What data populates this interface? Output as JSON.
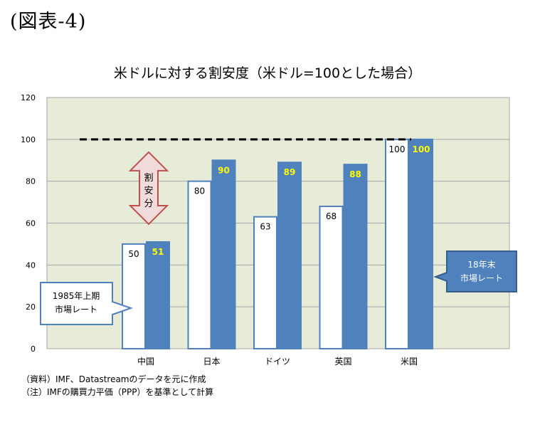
{
  "figure_label": "(図表-4)",
  "chart_data": {
    "type": "bar",
    "title": "米ドルに対する割安度（米ドル=100とした場合）",
    "categories": [
      "中国",
      "日本",
      "ドイツ",
      "英国",
      "米国"
    ],
    "series": [
      {
        "values": [
          50,
          80,
          63,
          68,
          100
        ],
        "fill": "#ffffff",
        "stroke": "#4f81bd",
        "label_color": "#000000"
      },
      {
        "values": [
          51,
          90,
          89,
          88,
          100
        ],
        "fill": "#4f81bd",
        "stroke": "#4f81bd",
        "label_color": "#ffff00"
      }
    ],
    "ylim": [
      0,
      120
    ],
    "yticks": [
      "0",
      "20",
      "40",
      "60",
      "80",
      "100",
      "120"
    ],
    "reference_line": 100,
    "grid": true,
    "plot_background": "#e6ecd8",
    "annotations": {
      "arrow_text": [
        "割",
        "安",
        "分"
      ],
      "callout_left": [
        "1985年上期",
        "市場レート"
      ],
      "callout_right": [
        "18年末",
        "市場レート"
      ]
    }
  },
  "notes": [
    "（資料）IMF、Datastreamのデータを元に作成",
    "（注）IMFの購買力平価（PPP）を基準として計算"
  ]
}
